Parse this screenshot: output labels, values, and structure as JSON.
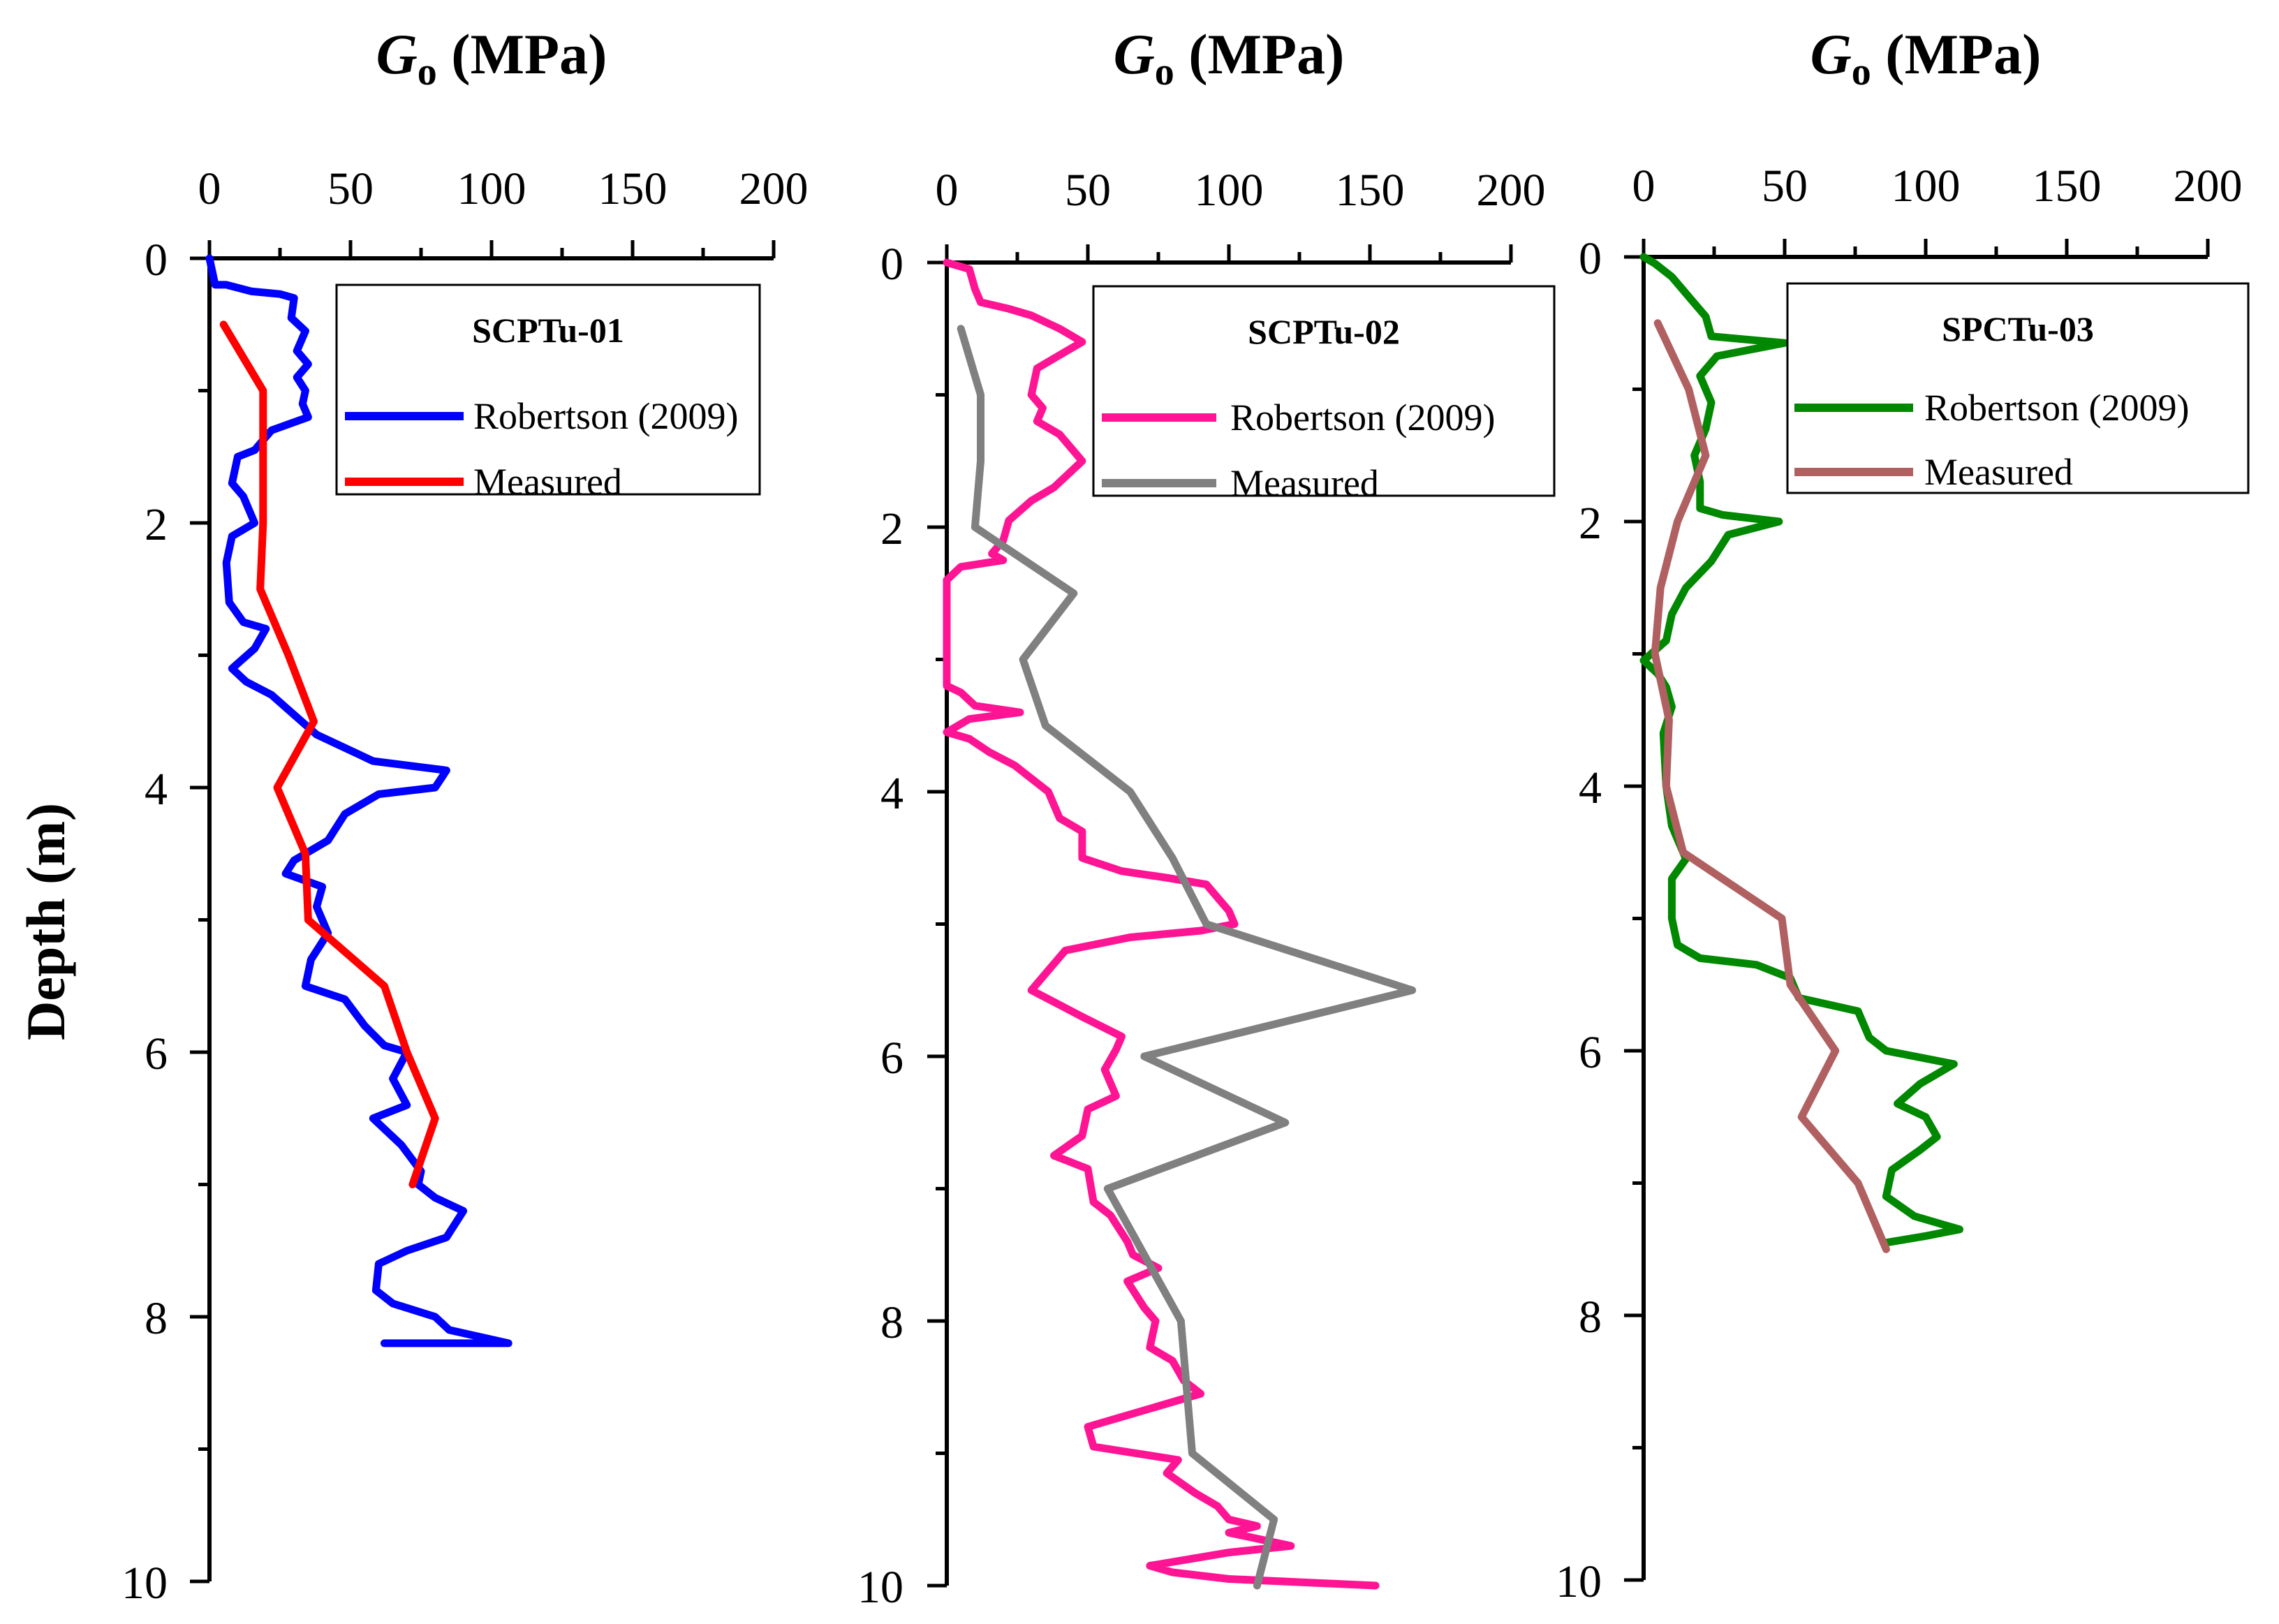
{
  "figure": {
    "ylabel": "Depth (m)"
  },
  "chart_data": [
    {
      "type": "line",
      "title_main": "G",
      "title_sub": "o",
      "title_rest": " (MPa)",
      "xlabel": "G o (MPa)",
      "ylabel": "Depth (m)",
      "xlim": [
        0,
        200
      ],
      "ylim": [
        0,
        10
      ],
      "x_ticks": [
        "0",
        "50",
        "100",
        "150",
        "200"
      ],
      "y_ticks": [
        "0",
        "2",
        "4",
        "6",
        "8",
        "10"
      ],
      "legend": {
        "title": "SCPTu-01",
        "position": "top-right"
      },
      "series": [
        {
          "name": "Robertson (2009)",
          "color": "#0000ff",
          "points": [
            [
              0,
              0
            ],
            [
              2,
              0.2
            ],
            [
              6,
              0.2
            ],
            [
              15,
              0.25
            ],
            [
              25,
              0.27
            ],
            [
              30,
              0.3
            ],
            [
              29,
              0.45
            ],
            [
              34,
              0.55
            ],
            [
              31,
              0.7
            ],
            [
              35,
              0.8
            ],
            [
              31,
              0.9
            ],
            [
              34,
              1.0
            ],
            [
              33,
              1.1
            ],
            [
              35,
              1.2
            ],
            [
              22,
              1.3
            ],
            [
              16,
              1.45
            ],
            [
              10,
              1.5
            ],
            [
              8,
              1.7
            ],
            [
              12,
              1.8
            ],
            [
              16,
              2.0
            ],
            [
              8,
              2.1
            ],
            [
              6,
              2.3
            ],
            [
              7,
              2.6
            ],
            [
              12,
              2.75
            ],
            [
              20,
              2.8
            ],
            [
              16,
              2.95
            ],
            [
              8,
              3.1
            ],
            [
              13,
              3.2
            ],
            [
              22,
              3.3
            ],
            [
              30,
              3.45
            ],
            [
              38,
              3.6
            ],
            [
              48,
              3.7
            ],
            [
              58,
              3.8
            ],
            [
              84,
              3.87
            ],
            [
              80,
              4.0
            ],
            [
              60,
              4.05
            ],
            [
              48,
              4.2
            ],
            [
              42,
              4.4
            ],
            [
              30,
              4.55
            ],
            [
              27,
              4.65
            ],
            [
              40,
              4.75
            ],
            [
              38,
              4.9
            ],
            [
              42,
              5.1
            ],
            [
              36,
              5.3
            ],
            [
              34,
              5.5
            ],
            [
              48,
              5.6
            ],
            [
              55,
              5.8
            ],
            [
              62,
              5.95
            ],
            [
              70,
              6.0
            ],
            [
              65,
              6.2
            ],
            [
              70,
              6.4
            ],
            [
              58,
              6.5
            ],
            [
              68,
              6.7
            ],
            [
              75,
              6.9
            ],
            [
              74,
              7.0
            ],
            [
              80,
              7.1
            ],
            [
              90,
              7.2
            ],
            [
              84,
              7.4
            ],
            [
              70,
              7.5
            ],
            [
              60,
              7.6
            ],
            [
              59,
              7.8
            ],
            [
              65,
              7.9
            ],
            [
              80,
              8.0
            ],
            [
              85,
              8.1
            ],
            [
              106,
              8.2
            ],
            [
              62,
              8.2
            ]
          ]
        },
        {
          "name": "Measured",
          "color": "#ff0000",
          "points": [
            [
              5,
              0.5
            ],
            [
              19,
              1.0
            ],
            [
              19,
              2.0
            ],
            [
              18,
              2.5
            ],
            [
              28,
              3.0
            ],
            [
              37,
              3.5
            ],
            [
              24,
              4.0
            ],
            [
              34,
              4.5
            ],
            [
              35,
              5.0
            ],
            [
              62,
              5.5
            ],
            [
              70,
              6.0
            ],
            [
              80,
              6.5
            ],
            [
              72,
              7.0
            ]
          ]
        }
      ]
    },
    {
      "type": "line",
      "title_main": "G",
      "title_sub": "o",
      "title_rest": " (MPa)",
      "xlabel": "G o (MPa)",
      "ylabel": "Depth (m)",
      "xlim": [
        0,
        200
      ],
      "ylim": [
        0,
        10
      ],
      "x_ticks": [
        "0",
        "50",
        "100",
        "150",
        "200"
      ],
      "y_ticks": [
        "0",
        "2",
        "4",
        "6",
        "8",
        "10"
      ],
      "legend": {
        "title": "SCPTu-02",
        "position": "top-right"
      },
      "series": [
        {
          "name": "Robertson (2009)",
          "color": "#ff1493",
          "points": [
            [
              0,
              0
            ],
            [
              8,
              0.05
            ],
            [
              10,
              0.2
            ],
            [
              12,
              0.3
            ],
            [
              22,
              0.35
            ],
            [
              30,
              0.4
            ],
            [
              40,
              0.5
            ],
            [
              48,
              0.6
            ],
            [
              40,
              0.7
            ],
            [
              32,
              0.8
            ],
            [
              30,
              1.0
            ],
            [
              34,
              1.1
            ],
            [
              32,
              1.2
            ],
            [
              40,
              1.3
            ],
            [
              48,
              1.5
            ],
            [
              38,
              1.7
            ],
            [
              30,
              1.8
            ],
            [
              22,
              1.95
            ],
            [
              20,
              2.1
            ],
            [
              16,
              2.2
            ],
            [
              20,
              2.25
            ],
            [
              5,
              2.3
            ],
            [
              0,
              2.4
            ],
            [
              0,
              3.2
            ],
            [
              5,
              3.25
            ],
            [
              10,
              3.35
            ],
            [
              26,
              3.4
            ],
            [
              8,
              3.45
            ],
            [
              0,
              3.55
            ],
            [
              8,
              3.6
            ],
            [
              15,
              3.7
            ],
            [
              24,
              3.8
            ],
            [
              30,
              3.9
            ],
            [
              36,
              4.0
            ],
            [
              40,
              4.2
            ],
            [
              48,
              4.3
            ],
            [
              48,
              4.5
            ],
            [
              62,
              4.6
            ],
            [
              78,
              4.65
            ],
            [
              92,
              4.7
            ],
            [
              96,
              4.8
            ],
            [
              100,
              4.9
            ],
            [
              102,
              5.0
            ],
            [
              90,
              5.05
            ],
            [
              65,
              5.1
            ],
            [
              42,
              5.2
            ],
            [
              36,
              5.35
            ],
            [
              30,
              5.5
            ],
            [
              48,
              5.7
            ],
            [
              62,
              5.85
            ],
            [
              60,
              5.95
            ],
            [
              56,
              6.1
            ],
            [
              60,
              6.3
            ],
            [
              50,
              6.4
            ],
            [
              48,
              6.6
            ],
            [
              38,
              6.75
            ],
            [
              50,
              6.85
            ],
            [
              52,
              7.1
            ],
            [
              58,
              7.2
            ],
            [
              64,
              7.4
            ],
            [
              66,
              7.5
            ],
            [
              75,
              7.6
            ],
            [
              64,
              7.7
            ],
            [
              70,
              7.9
            ],
            [
              74,
              8.0
            ],
            [
              72,
              8.2
            ],
            [
              80,
              8.3
            ],
            [
              84,
              8.45
            ],
            [
              90,
              8.55
            ],
            [
              74,
              8.65
            ],
            [
              50,
              8.8
            ],
            [
              52,
              8.95
            ],
            [
              82,
              9.05
            ],
            [
              78,
              9.15
            ],
            [
              88,
              9.3
            ],
            [
              96,
              9.4
            ],
            [
              100,
              9.5
            ],
            [
              110,
              9.55
            ],
            [
              100,
              9.6
            ],
            [
              122,
              9.7
            ],
            [
              100,
              9.75
            ],
            [
              72,
              9.85
            ],
            [
              80,
              9.9
            ],
            [
              100,
              9.95
            ],
            [
              152,
              10.0
            ]
          ]
        },
        {
          "name": "Measured",
          "color": "#808080",
          "points": [
            [
              5,
              0.5
            ],
            [
              12,
              1.0
            ],
            [
              12,
              1.5
            ],
            [
              10,
              2.0
            ],
            [
              45,
              2.5
            ],
            [
              27,
              3.0
            ],
            [
              35,
              3.5
            ],
            [
              65,
              4.0
            ],
            [
              80,
              4.5
            ],
            [
              92,
              5.0
            ],
            [
              165,
              5.5
            ],
            [
              70,
              6.0
            ],
            [
              120,
              6.5
            ],
            [
              57,
              7.0
            ],
            [
              70,
              7.5
            ],
            [
              83,
              8.0
            ],
            [
              87,
              9.0
            ],
            [
              116,
              9.5
            ],
            [
              110,
              10.0
            ]
          ]
        }
      ]
    },
    {
      "type": "line",
      "title_main": "G",
      "title_sub": "o",
      "title_rest": " (MPa)",
      "xlabel": "G o (MPa)",
      "ylabel": "Depth (m)",
      "xlim": [
        0,
        200
      ],
      "ylim": [
        0,
        10
      ],
      "x_ticks": [
        "0",
        "50",
        "100",
        "150",
        "200"
      ],
      "y_ticks": [
        "0",
        "2",
        "4",
        "6",
        "8",
        "10"
      ],
      "legend": {
        "title": "SPCTu-03",
        "position": "top-right"
      },
      "series": [
        {
          "name": "Robertson (2009)",
          "color": "#008800",
          "points": [
            [
              0,
              0
            ],
            [
              4,
              0.05
            ],
            [
              10,
              0.15
            ],
            [
              16,
              0.3
            ],
            [
              22,
              0.45
            ],
            [
              24,
              0.6
            ],
            [
              50,
              0.65
            ],
            [
              26,
              0.75
            ],
            [
              20,
              0.9
            ],
            [
              24,
              1.1
            ],
            [
              22,
              1.3
            ],
            [
              18,
              1.5
            ],
            [
              20,
              1.7
            ],
            [
              20,
              1.9
            ],
            [
              28,
              1.95
            ],
            [
              48,
              2.0
            ],
            [
              30,
              2.1
            ],
            [
              24,
              2.3
            ],
            [
              15,
              2.5
            ],
            [
              10,
              2.7
            ],
            [
              8,
              2.9
            ],
            [
              0,
              3.05
            ],
            [
              5,
              3.15
            ],
            [
              8,
              3.25
            ],
            [
              10,
              3.4
            ],
            [
              7,
              3.6
            ],
            [
              8,
              4.0
            ],
            [
              10,
              4.3
            ],
            [
              15,
              4.55
            ],
            [
              10,
              4.7
            ],
            [
              10,
              5.0
            ],
            [
              12,
              5.2
            ],
            [
              20,
              5.3
            ],
            [
              40,
              5.35
            ],
            [
              52,
              5.45
            ],
            [
              55,
              5.6
            ],
            [
              76,
              5.7
            ],
            [
              80,
              5.9
            ],
            [
              86,
              6.0
            ],
            [
              110,
              6.1
            ],
            [
              98,
              6.25
            ],
            [
              90,
              6.4
            ],
            [
              100,
              6.5
            ],
            [
              104,
              6.65
            ],
            [
              98,
              6.75
            ],
            [
              88,
              6.9
            ],
            [
              86,
              7.1
            ],
            [
              96,
              7.25
            ],
            [
              112,
              7.35
            ],
            [
              100,
              7.4
            ],
            [
              86,
              7.45
            ]
          ]
        },
        {
          "name": "Measured",
          "color": "#b06060",
          "points": [
            [
              5,
              0.5
            ],
            [
              16,
              1.0
            ],
            [
              22,
              1.5
            ],
            [
              12,
              2.0
            ],
            [
              6,
              2.5
            ],
            [
              4,
              3.0
            ],
            [
              9,
              3.5
            ],
            [
              8,
              4.0
            ],
            [
              14,
              4.5
            ],
            [
              49,
              5.0
            ],
            [
              52,
              5.5
            ],
            [
              68,
              6.0
            ],
            [
              56,
              6.5
            ],
            [
              76,
              7.0
            ],
            [
              86,
              7.5
            ]
          ]
        }
      ]
    }
  ]
}
